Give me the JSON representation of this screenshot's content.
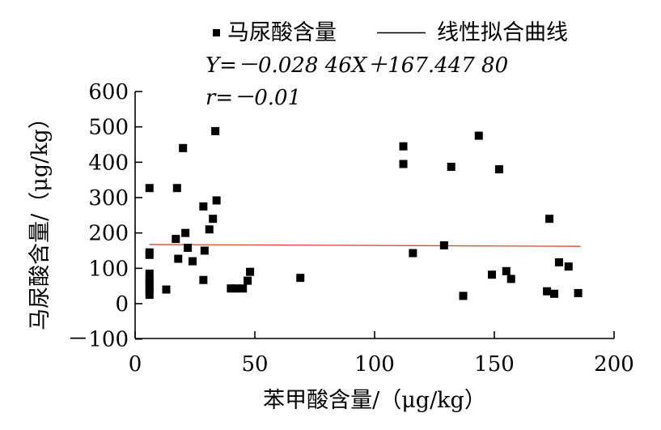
{
  "chart_data": {
    "type": "scatter",
    "xlabel": "苯甲酸含量/（μg/kg）",
    "ylabel": "马尿酸含量/（μg/kg）",
    "xlim": [
      0,
      200
    ],
    "ylim": [
      -100,
      600
    ],
    "xticks": [
      "0",
      "50",
      "100",
      "150",
      "200"
    ],
    "yticks": [
      "600",
      "500",
      "400",
      "300",
      "200",
      "100",
      "0",
      "－100"
    ],
    "legend": {
      "position": "top",
      "scatter_label": "马尿酸含量",
      "line_label": "线性拟合曲线"
    },
    "annotations": {
      "equation": "Y=－0.028 46X＋167.447 80",
      "r": "r=－0.01"
    },
    "fit": {
      "slope": -0.02846,
      "intercept": 167.4478,
      "x_range": [
        6,
        186
      ]
    },
    "colors": {
      "points": "#000000",
      "fit_line": "#d9492b"
    },
    "points": [
      [
        6,
        327
      ],
      [
        6,
        145
      ],
      [
        6,
        138
      ],
      [
        6,
        85
      ],
      [
        6,
        70
      ],
      [
        6,
        60
      ],
      [
        6,
        48
      ],
      [
        6,
        37
      ],
      [
        6,
        25
      ],
      [
        13,
        40
      ],
      [
        17,
        183
      ],
      [
        17.5,
        327
      ],
      [
        18,
        127
      ],
      [
        20,
        440
      ],
      [
        21,
        200
      ],
      [
        22,
        158
      ],
      [
        24,
        120
      ],
      [
        28.5,
        275
      ],
      [
        29,
        150
      ],
      [
        28.5,
        67
      ],
      [
        31,
        210
      ],
      [
        32.5,
        240
      ],
      [
        33.5,
        488
      ],
      [
        34,
        292
      ],
      [
        40,
        43
      ],
      [
        42,
        43
      ],
      [
        45,
        43
      ],
      [
        47,
        65
      ],
      [
        48,
        90
      ],
      [
        69,
        73
      ],
      [
        112,
        445
      ],
      [
        112,
        395
      ],
      [
        116,
        143
      ],
      [
        129,
        165
      ],
      [
        132,
        387
      ],
      [
        137,
        22
      ],
      [
        143.5,
        475
      ],
      [
        149,
        82
      ],
      [
        152,
        380
      ],
      [
        155,
        92
      ],
      [
        157,
        70
      ],
      [
        172,
        35
      ],
      [
        173,
        240
      ],
      [
        175,
        28
      ],
      [
        177,
        117
      ],
      [
        181,
        105
      ],
      [
        185,
        30
      ]
    ]
  }
}
